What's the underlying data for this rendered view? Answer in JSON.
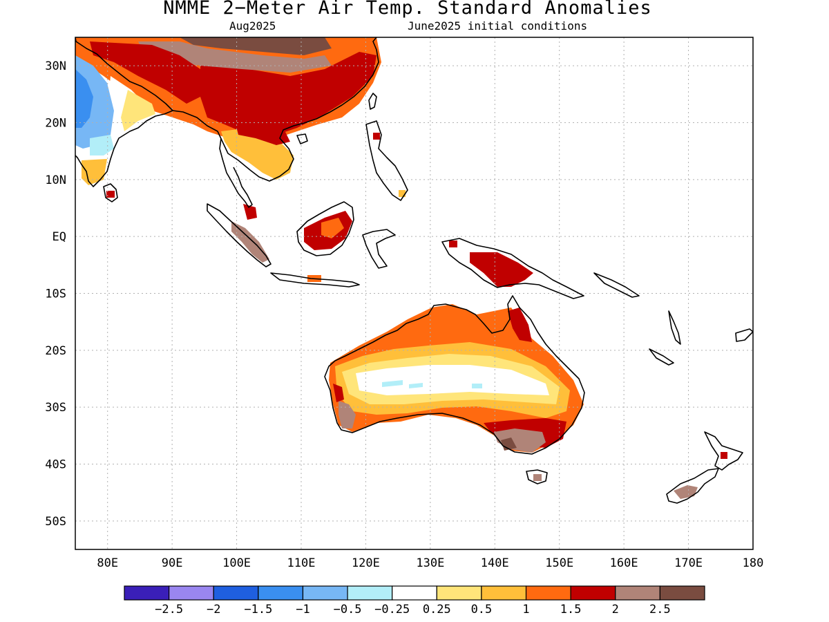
{
  "title": "NMME 2−Meter Air Temp. Standard Anomalies",
  "subtitle_left": "Aug2025",
  "subtitle_right": "June2025 initial conditions",
  "map": {
    "lon_range": [
      75,
      180
    ],
    "lat_range": [
      -55,
      35
    ],
    "lon_ticks": [
      "80E",
      "90E",
      "100E",
      "110E",
      "120E",
      "130E",
      "140E",
      "150E",
      "160E",
      "170E",
      "180"
    ],
    "lat_ticks": [
      "30N",
      "20N",
      "10N",
      "EQ",
      "10S",
      "20S",
      "30S",
      "40S",
      "50S"
    ],
    "grid": "dotted"
  },
  "legend": {
    "colors": [
      "#3a1fb8",
      "#9a86f0",
      "#1f5fe0",
      "#3a8ff0",
      "#77b7f5",
      "#b2eef8",
      "#ffffff",
      "#ffe57a",
      "#ffbf3a",
      "#ff6a10",
      "#c00000",
      "#b08478",
      "#7a4c40"
    ],
    "labels": [
      "−2.5",
      "−2",
      "−1.5",
      "−1",
      "−0.5",
      "−0.25",
      "0.25",
      "0.5",
      "1",
      "1.5",
      "2",
      "2.5"
    ]
  },
  "anomaly_regions": [
    {
      "region": "Tibetan Plateau / northern China",
      "class": "2.5"
    },
    {
      "region": "Southern China",
      "class": "1.5"
    },
    {
      "region": "Indochina",
      "class": "1"
    },
    {
      "region": "India (west)",
      "class": "-1"
    },
    {
      "region": "Borneo",
      "class": "2"
    },
    {
      "region": "New Guinea",
      "class": "2"
    },
    {
      "region": "Australia interior",
      "class": "0.25"
    },
    {
      "region": "Australia ring",
      "class": "0.5"
    },
    {
      "region": "Northern Australia",
      "class": "1.5"
    },
    {
      "region": "Cape York",
      "class": "2"
    },
    {
      "region": "Southeast Australia",
      "class": "2.5"
    },
    {
      "region": "Southwest Australia",
      "class": "2.5"
    },
    {
      "region": "Tasmania",
      "class": "2"
    },
    {
      "region": "New Zealand South Island",
      "class": "2"
    },
    {
      "region": "Sumatra",
      "class": "2"
    }
  ]
}
